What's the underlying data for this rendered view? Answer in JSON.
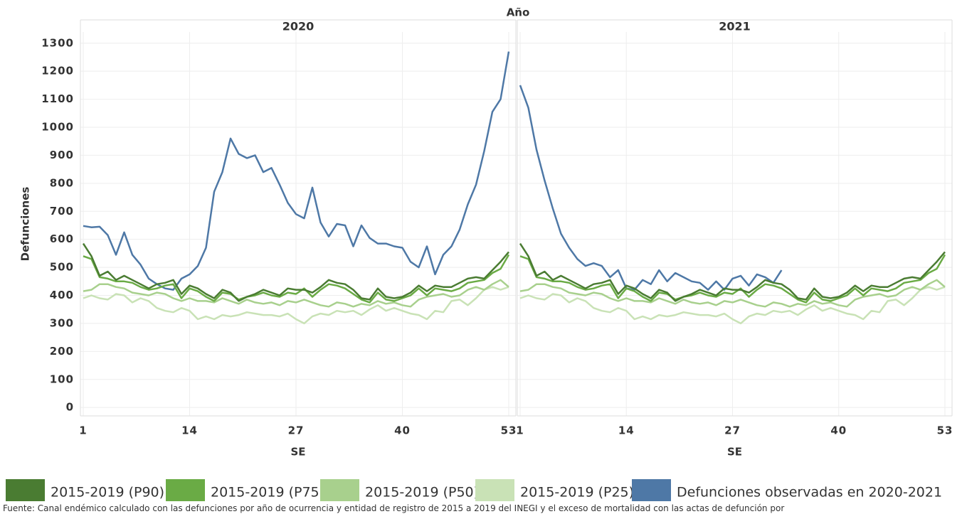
{
  "chart_data": {
    "type": "line",
    "facet_title": "Año",
    "facets": [
      "2020",
      "2021"
    ],
    "ylabel": "Defunciones",
    "xlabel": "SE",
    "x": [
      1,
      2,
      3,
      4,
      5,
      6,
      7,
      8,
      9,
      10,
      11,
      12,
      13,
      14,
      15,
      16,
      17,
      18,
      19,
      20,
      21,
      22,
      23,
      24,
      25,
      26,
      27,
      28,
      29,
      30,
      31,
      32,
      33,
      34,
      35,
      36,
      37,
      38,
      39,
      40,
      41,
      42,
      43,
      44,
      45,
      46,
      47,
      48,
      49,
      50,
      51,
      52,
      53
    ],
    "xlim": [
      1,
      53
    ],
    "xticks": [
      1,
      14,
      27,
      40,
      53
    ],
    "ylim": [
      -30,
      1340
    ],
    "yticks": [
      0,
      100,
      200,
      300,
      400,
      500,
      600,
      700,
      800,
      900,
      1000,
      1100,
      1200,
      1300
    ],
    "grid": true,
    "series": [
      {
        "name": "2015-2019 (P90)",
        "color": "#4a7c32",
        "values": [
          [
            585,
            540,
            470,
            485,
            455,
            470,
            455,
            440,
            425,
            440,
            445,
            455,
            405,
            435,
            425,
            405,
            390,
            420,
            410,
            380,
            395,
            405,
            420,
            410,
            400,
            425,
            420,
            420,
            410,
            430,
            455,
            445,
            440,
            420,
            390,
            385,
            425,
            395,
            390,
            395,
            410,
            435,
            415,
            435,
            430,
            430,
            445,
            460,
            465,
            460,
            490,
            520,
            555
          ],
          [
            585,
            540,
            470,
            485,
            455,
            470,
            455,
            440,
            425,
            440,
            445,
            455,
            405,
            435,
            425,
            405,
            390,
            420,
            410,
            380,
            395,
            405,
            420,
            410,
            400,
            425,
            420,
            420,
            410,
            430,
            455,
            445,
            440,
            420,
            390,
            385,
            425,
            395,
            390,
            395,
            410,
            435,
            415,
            435,
            430,
            430,
            445,
            460,
            465,
            460,
            490,
            520,
            555
          ]
        ]
      },
      {
        "name": "2015-2019 (P75)",
        "color": "#6aab45",
        "values": [
          [
            540,
            530,
            465,
            460,
            450,
            450,
            445,
            430,
            420,
            425,
            435,
            440,
            390,
            425,
            415,
            395,
            380,
            410,
            405,
            385,
            395,
            400,
            410,
            400,
            395,
            410,
            405,
            425,
            395,
            420,
            440,
            435,
            425,
            405,
            385,
            375,
            410,
            385,
            380,
            390,
            400,
            425,
            400,
            425,
            420,
            415,
            425,
            445,
            450,
            455,
            480,
            495,
            545
          ],
          [
            540,
            530,
            465,
            460,
            450,
            450,
            445,
            430,
            420,
            425,
            435,
            440,
            390,
            425,
            415,
            395,
            380,
            410,
            405,
            385,
            395,
            400,
            410,
            400,
            395,
            410,
            405,
            425,
            395,
            420,
            440,
            435,
            425,
            405,
            385,
            375,
            410,
            385,
            380,
            390,
            400,
            425,
            400,
            425,
            420,
            415,
            425,
            445,
            450,
            455,
            480,
            495,
            545
          ]
        ]
      },
      {
        "name": "2015-2019 (P50)",
        "color": "#a8d08d",
        "values": [
          [
            415,
            420,
            440,
            440,
            430,
            425,
            410,
            405,
            400,
            410,
            405,
            390,
            380,
            390,
            380,
            380,
            375,
            390,
            380,
            370,
            385,
            375,
            370,
            375,
            365,
            380,
            375,
            385,
            375,
            365,
            360,
            375,
            370,
            360,
            370,
            365,
            380,
            370,
            375,
            365,
            360,
            385,
            395,
            400,
            405,
            395,
            400,
            420,
            430,
            420,
            440,
            455,
            430
          ],
          [
            415,
            420,
            440,
            440,
            430,
            425,
            410,
            405,
            400,
            410,
            405,
            390,
            380,
            390,
            380,
            380,
            375,
            390,
            380,
            370,
            385,
            375,
            370,
            375,
            365,
            380,
            375,
            385,
            375,
            365,
            360,
            375,
            370,
            360,
            370,
            365,
            380,
            370,
            375,
            365,
            360,
            385,
            395,
            400,
            405,
            395,
            400,
            420,
            430,
            420,
            440,
            455,
            430
          ]
        ]
      },
      {
        "name": "2015-2019 (P25)",
        "color": "#c9e2b6",
        "values": [
          [
            390,
            400,
            390,
            385,
            405,
            400,
            375,
            390,
            380,
            355,
            345,
            340,
            355,
            345,
            315,
            325,
            315,
            330,
            325,
            330,
            340,
            335,
            330,
            330,
            325,
            335,
            315,
            300,
            325,
            335,
            330,
            345,
            340,
            345,
            330,
            350,
            365,
            345,
            355,
            345,
            335,
            330,
            315,
            345,
            340,
            380,
            385,
            365,
            390,
            420,
            430,
            420,
            430
          ],
          [
            390,
            400,
            390,
            385,
            405,
            400,
            375,
            390,
            380,
            355,
            345,
            340,
            355,
            345,
            315,
            325,
            315,
            330,
            325,
            330,
            340,
            335,
            330,
            330,
            325,
            335,
            315,
            300,
            325,
            335,
            330,
            345,
            340,
            345,
            330,
            350,
            365,
            345,
            355,
            345,
            335,
            330,
            315,
            345,
            340,
            380,
            385,
            365,
            390,
            420,
            430,
            420,
            430
          ]
        ]
      },
      {
        "name": "Defunciones observadas en 2020-2021",
        "color": "#4e78a6",
        "values": [
          [
            648,
            643,
            645,
            615,
            545,
            625,
            545,
            510,
            460,
            440,
            425,
            420,
            460,
            475,
            505,
            570,
            770,
            840,
            960,
            905,
            890,
            900,
            840,
            855,
            795,
            730,
            690,
            675,
            785,
            660,
            610,
            655,
            650,
            575,
            650,
            605,
            585,
            585,
            575,
            570,
            520,
            500,
            575,
            475,
            545,
            575,
            635,
            725,
            795,
            915,
            1055,
            1100,
            1270
          ],
          [
            1150,
            1070,
            920,
            810,
            710,
            620,
            570,
            530,
            505,
            515,
            505,
            465,
            490,
            425,
            420,
            455,
            440,
            490,
            450,
            480,
            465,
            450,
            445,
            420,
            450,
            420,
            460,
            470,
            435,
            475,
            465,
            445,
            490,
            null,
            null,
            null,
            null,
            null,
            null,
            null,
            null,
            null,
            null,
            null,
            null,
            null,
            null,
            null,
            null,
            null,
            null,
            null,
            null
          ]
        ]
      }
    ],
    "note": "Fuente: Canal endémico calculado con las defunciones por año de ocurrencia y entidad de registro de 2015 a 2019 del INEGI y el exceso de mortalidad con las actas de defunción por"
  }
}
